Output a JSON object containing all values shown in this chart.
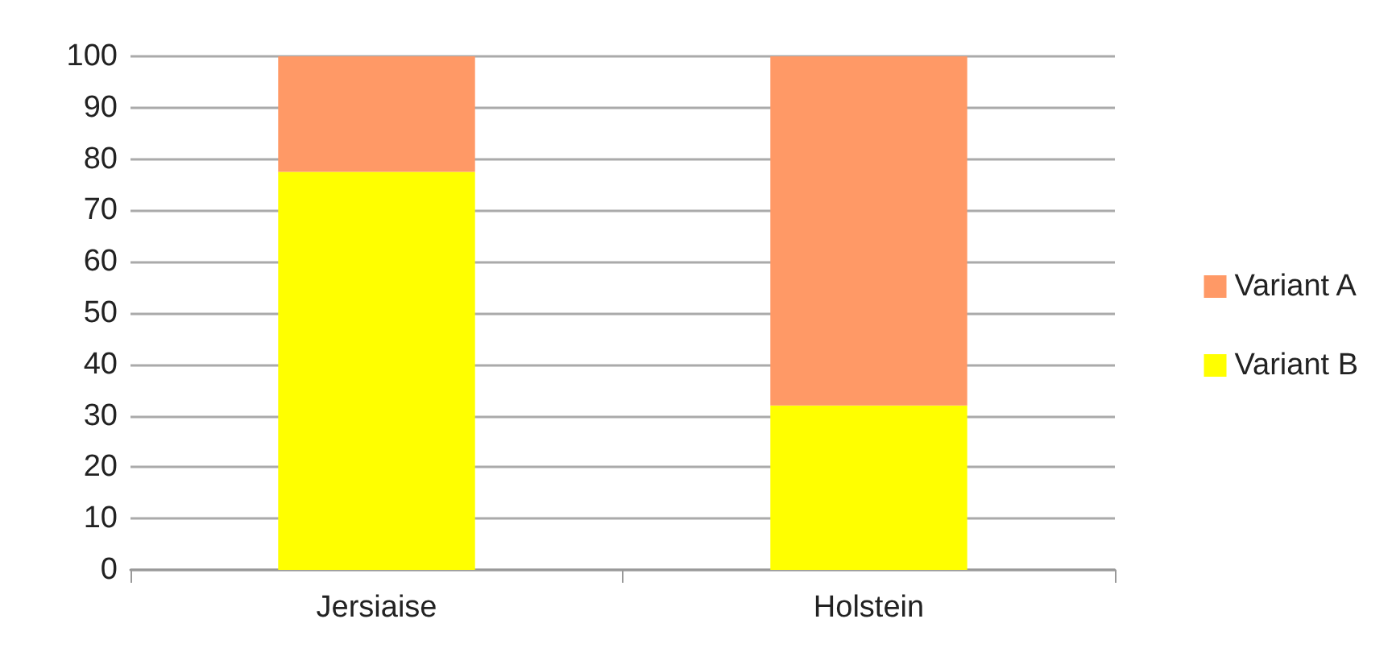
{
  "chart_data": {
    "type": "bar",
    "stacked": true,
    "categories": [
      "Jersiaise",
      "Holstein"
    ],
    "series": [
      {
        "name": "Variant B",
        "color": "#ffff00",
        "values": [
          77.5,
          32
        ]
      },
      {
        "name": "Variant A",
        "color": "#ff9966",
        "values": [
          22.5,
          68
        ]
      }
    ],
    "ylim": [
      0,
      100
    ],
    "yticks": [
      0,
      10,
      20,
      30,
      40,
      50,
      60,
      70,
      80,
      90,
      100
    ],
    "grid": "y",
    "legend": "right"
  }
}
